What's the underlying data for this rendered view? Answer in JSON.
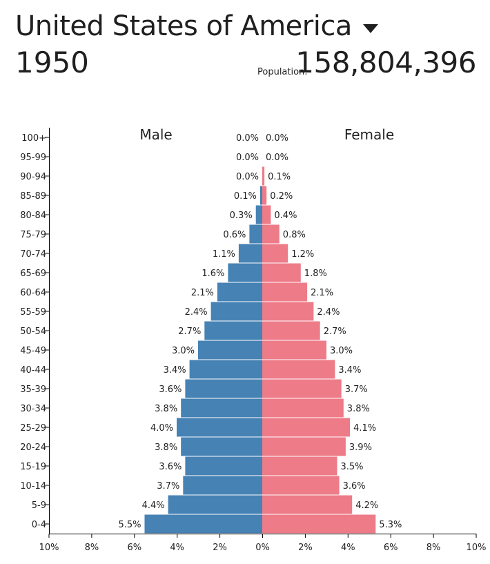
{
  "header": {
    "country": "United States of America",
    "year": "1950",
    "population_label": "Population:",
    "population_value": "158,804,396"
  },
  "colors": {
    "male": "#4682b4",
    "female": "#ee7b88",
    "text": "#222222"
  },
  "chart_data": {
    "type": "bar",
    "orientation": "horizontal-population-pyramid",
    "categories": [
      "100+",
      "95-99",
      "90-94",
      "85-89",
      "80-84",
      "75-79",
      "70-74",
      "65-69",
      "60-64",
      "55-59",
      "50-54",
      "45-49",
      "40-44",
      "35-39",
      "30-34",
      "25-29",
      "20-24",
      "15-19",
      "10-14",
      "5-9",
      "0-4"
    ],
    "series": [
      {
        "name": "Male",
        "values": [
          0.0,
          0.0,
          0.0,
          0.1,
          0.3,
          0.6,
          1.1,
          1.6,
          2.1,
          2.4,
          2.7,
          3.0,
          3.4,
          3.6,
          3.8,
          4.0,
          3.8,
          3.6,
          3.7,
          4.4,
          5.5
        ]
      },
      {
        "name": "Female",
        "values": [
          0.0,
          0.0,
          0.1,
          0.2,
          0.4,
          0.8,
          1.2,
          1.8,
          2.1,
          2.4,
          2.7,
          3.0,
          3.4,
          3.7,
          3.8,
          4.1,
          3.9,
          3.5,
          3.6,
          4.2,
          5.3
        ]
      }
    ],
    "data_labels": {
      "male": [
        "0.0%",
        "0.0%",
        "0.0%",
        "0.1%",
        "0.3%",
        "0.6%",
        "1.1%",
        "1.6%",
        "2.1%",
        "2.4%",
        "2.7%",
        "3.0%",
        "3.4%",
        "3.6%",
        "3.8%",
        "4.0%",
        "3.8%",
        "3.6%",
        "3.7%",
        "4.4%",
        "5.5%"
      ],
      "female": [
        "0.0%",
        "0.0%",
        "0.1%",
        "0.2%",
        "0.4%",
        "0.8%",
        "1.2%",
        "1.8%",
        "2.1%",
        "2.4%",
        "2.7%",
        "3.0%",
        "3.4%",
        "3.7%",
        "3.8%",
        "4.1%",
        "3.9%",
        "3.5%",
        "3.6%",
        "4.2%",
        "5.3%"
      ]
    },
    "xticks": [
      "10%",
      "8%",
      "6%",
      "4%",
      "2%",
      "0%",
      "2%",
      "4%",
      "6%",
      "8%",
      "10%"
    ],
    "xlim": [
      -10,
      10
    ],
    "unit": "%",
    "grid": false,
    "legend": "none"
  }
}
